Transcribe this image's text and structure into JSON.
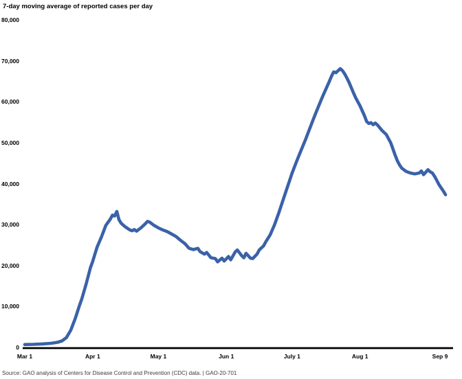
{
  "chart_data": {
    "type": "line",
    "title": "7-day moving average of reported cases per day",
    "source": "Source: GAO analysis of Centers for Disease Control and Prevention (CDC) data.  |  GAO-20-701",
    "series_name": "7-day moving average of reported cases per day",
    "line_color": "#3A62A8",
    "axis_color": "#000000",
    "grid": false,
    "legend": false,
    "x_axis": {
      "unit": "days since Mar 1",
      "range": [
        0,
        192
      ],
      "start_label": "Mar 1",
      "end_label": "Sep 9",
      "ticks": [
        {
          "label": "Mar 1",
          "day": 0
        },
        {
          "label": "Apr 1",
          "day": 31
        },
        {
          "label": "May 1",
          "day": 61
        },
        {
          "label": "Jun 1",
          "day": 92
        },
        {
          "label": "July 1",
          "day": 122
        },
        {
          "label": "Aug 1",
          "day": 153
        },
        {
          "label": "Sep 9",
          "day": 192
        }
      ]
    },
    "y_axis": {
      "range": [
        0,
        80000
      ],
      "ticks": [
        {
          "label": "0",
          "value": 0
        },
        {
          "label": "10,000",
          "value": 10000
        },
        {
          "label": "20,000",
          "value": 20000
        },
        {
          "label": "30,000",
          "value": 30000
        },
        {
          "label": "40,000",
          "value": 40000
        },
        {
          "label": "50,000",
          "value": 50000
        },
        {
          "label": "60,000",
          "value": 60000
        },
        {
          "label": "70,000",
          "value": 70000
        },
        {
          "label": "80,000",
          "value": 80000
        }
      ]
    },
    "points": [
      [
        0,
        700
      ],
      [
        4,
        750
      ],
      [
        8,
        850
      ],
      [
        12,
        1000
      ],
      [
        15,
        1250
      ],
      [
        17,
        1600
      ],
      [
        19,
        2400
      ],
      [
        21,
        4200
      ],
      [
        23,
        7000
      ],
      [
        25,
        10300
      ],
      [
        26,
        11800
      ],
      [
        28,
        15500
      ],
      [
        30,
        19500
      ],
      [
        31,
        21000
      ],
      [
        33,
        24500
      ],
      [
        35,
        27000
      ],
      [
        37,
        29800
      ],
      [
        39,
        31300
      ],
      [
        40,
        32300
      ],
      [
        41,
        32100
      ],
      [
        42,
        33200
      ],
      [
        43,
        31200
      ],
      [
        44,
        30300
      ],
      [
        46,
        29400
      ],
      [
        48,
        28700
      ],
      [
        49,
        28500
      ],
      [
        50,
        28800
      ],
      [
        51,
        28400
      ],
      [
        53,
        29200
      ],
      [
        55,
        30200
      ],
      [
        56,
        30800
      ],
      [
        57,
        30600
      ],
      [
        59,
        29800
      ],
      [
        61,
        29200
      ],
      [
        63,
        28700
      ],
      [
        65,
        28300
      ],
      [
        67,
        27700
      ],
      [
        69,
        27100
      ],
      [
        71,
        26200
      ],
      [
        73,
        25400
      ],
      [
        75,
        24200
      ],
      [
        77,
        23900
      ],
      [
        79,
        24200
      ],
      [
        80,
        23400
      ],
      [
        82,
        22800
      ],
      [
        83,
        23200
      ],
      [
        85,
        21900
      ],
      [
        87,
        21700
      ],
      [
        88,
        20900
      ],
      [
        90,
        21800
      ],
      [
        91,
        21100
      ],
      [
        93,
        22200
      ],
      [
        94,
        21400
      ],
      [
        96,
        23300
      ],
      [
        97,
        23800
      ],
      [
        99,
        22400
      ],
      [
        100,
        21900
      ],
      [
        101,
        23000
      ],
      [
        103,
        21800
      ],
      [
        104,
        21700
      ],
      [
        106,
        22800
      ],
      [
        107,
        23800
      ],
      [
        109,
        24800
      ],
      [
        110,
        25800
      ],
      [
        112,
        27500
      ],
      [
        114,
        30000
      ],
      [
        116,
        33000
      ],
      [
        118,
        36200
      ],
      [
        120,
        39400
      ],
      [
        122,
        42600
      ],
      [
        124,
        45400
      ],
      [
        126,
        48000
      ],
      [
        128,
        50600
      ],
      [
        130,
        53400
      ],
      [
        132,
        56200
      ],
      [
        134,
        58800
      ],
      [
        136,
        61400
      ],
      [
        138,
        63800
      ],
      [
        139,
        65000
      ],
      [
        140,
        66300
      ],
      [
        141,
        67300
      ],
      [
        142,
        67100
      ],
      [
        143,
        67600
      ],
      [
        144,
        68100
      ],
      [
        145,
        67600
      ],
      [
        146,
        66800
      ],
      [
        147,
        65800
      ],
      [
        148,
        64700
      ],
      [
        150,
        62200
      ],
      [
        151,
        61000
      ],
      [
        153,
        59000
      ],
      [
        155,
        56600
      ],
      [
        156,
        55200
      ],
      [
        157,
        54700
      ],
      [
        158,
        54900
      ],
      [
        159,
        54400
      ],
      [
        160,
        54800
      ],
      [
        161,
        54300
      ],
      [
        163,
        53000
      ],
      [
        165,
        52000
      ],
      [
        167,
        50000
      ],
      [
        168,
        48500
      ],
      [
        169,
        47000
      ],
      [
        170,
        45600
      ],
      [
        171,
        44600
      ],
      [
        172,
        43800
      ],
      [
        174,
        43000
      ],
      [
        176,
        42600
      ],
      [
        178,
        42400
      ],
      [
        180,
        42600
      ],
      [
        181,
        43100
      ],
      [
        182,
        42200
      ],
      [
        183,
        42800
      ],
      [
        184,
        43400
      ],
      [
        185,
        42900
      ],
      [
        186,
        42600
      ],
      [
        187,
        41800
      ],
      [
        188,
        40800
      ],
      [
        189,
        39800
      ],
      [
        190,
        39000
      ],
      [
        191,
        38200
      ],
      [
        192,
        37300
      ]
    ]
  }
}
